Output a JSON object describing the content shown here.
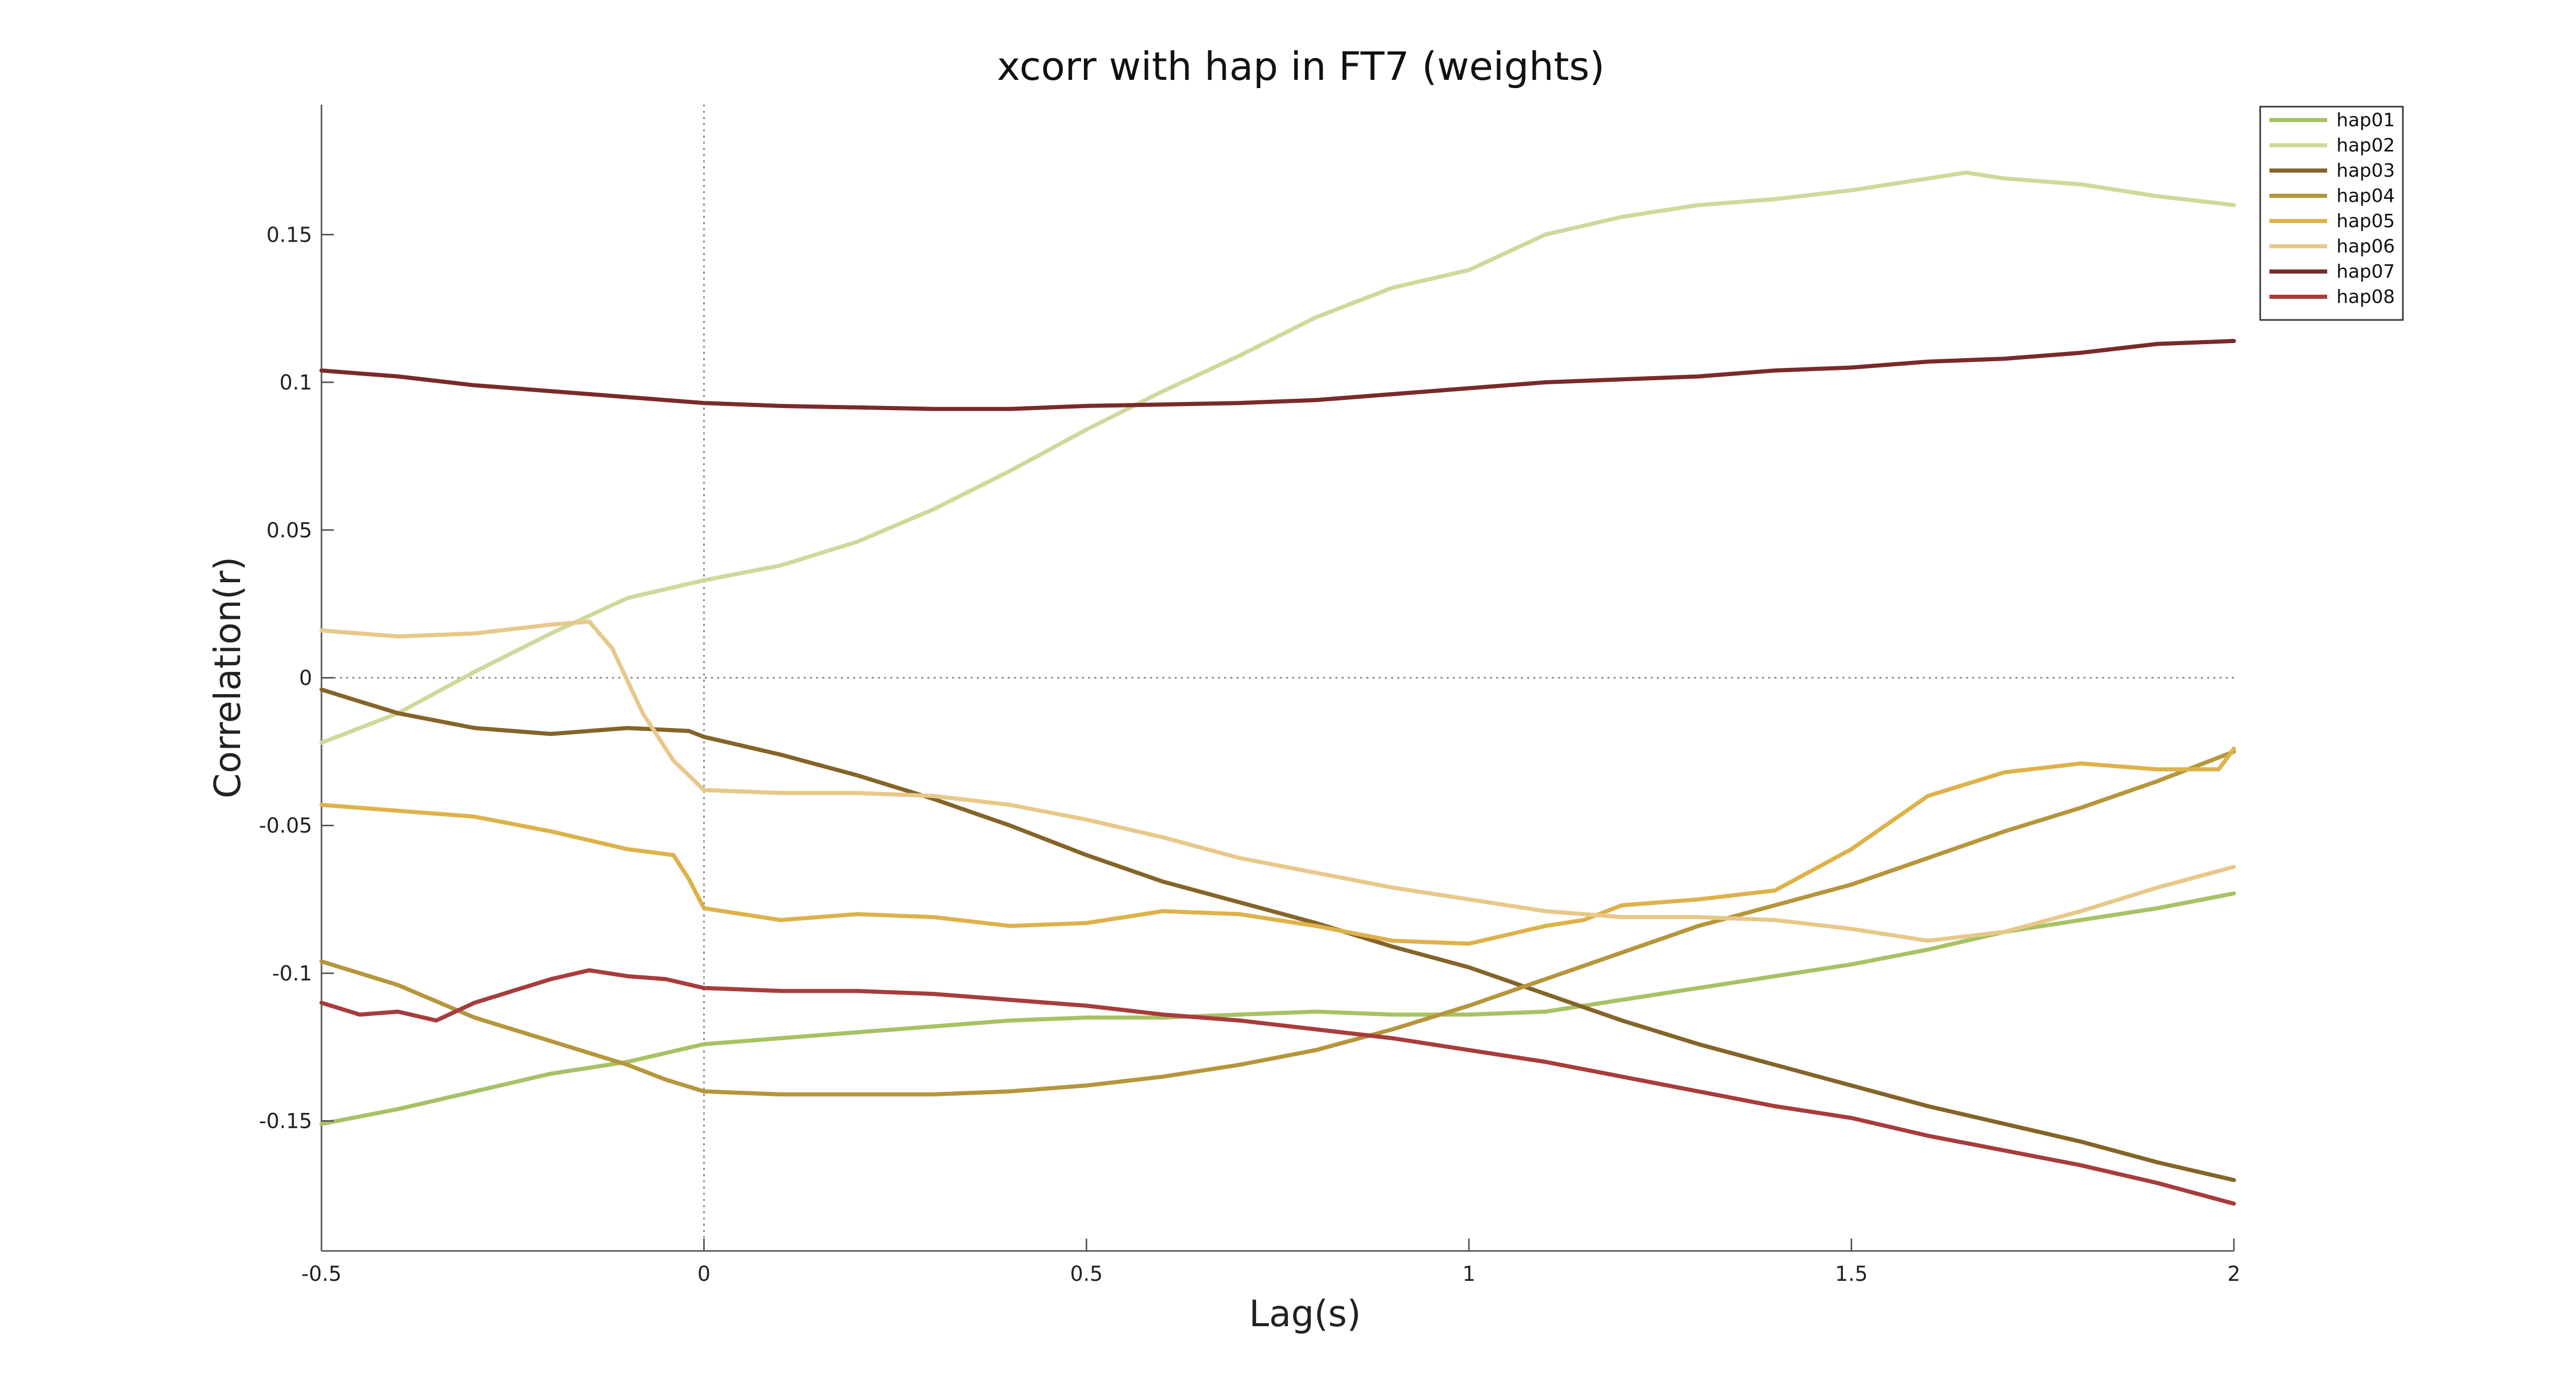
{
  "chart_data": {
    "type": "line",
    "title": "xcorr with hap in FT7 (weights)",
    "xlabel": "Lag(s)",
    "ylabel": "Correlation(r)",
    "xlim": [
      -0.5,
      2.0
    ],
    "ylim": [
      -0.194,
      0.194
    ],
    "x_ticks": [
      -0.5,
      0,
      0.5,
      1,
      1.5,
      2
    ],
    "x_tick_labels": [
      "-0.5",
      "0",
      "0.5",
      "1",
      "1.5",
      "2"
    ],
    "y_ticks": [
      -0.15,
      -0.1,
      -0.05,
      0,
      0.05,
      0.1,
      0.15
    ],
    "y_tick_labels": [
      "-0.15",
      "-0.1",
      "-0.05",
      "0",
      "0.05",
      "0.1",
      "0.15"
    ],
    "grid": false,
    "reference_lines": {
      "x_zero": true,
      "y_zero": true
    },
    "legend_position": "top-right",
    "series": [
      {
        "name": "hap01",
        "color": "#a7c264",
        "x": [
          -0.5,
          -0.4,
          -0.3,
          -0.2,
          -0.1,
          0.0,
          0.1,
          0.2,
          0.3,
          0.4,
          0.5,
          0.6,
          0.7,
          0.8,
          0.9,
          1.0,
          1.1,
          1.2,
          1.3,
          1.4,
          1.5,
          1.6,
          1.7,
          1.8,
          1.9,
          2.0
        ],
        "y": [
          -0.151,
          -0.146,
          -0.14,
          -0.134,
          -0.13,
          -0.124,
          -0.122,
          -0.12,
          -0.118,
          -0.116,
          -0.115,
          -0.115,
          -0.114,
          -0.113,
          -0.114,
          -0.114,
          -0.113,
          -0.109,
          -0.105,
          -0.101,
          -0.097,
          -0.092,
          -0.086,
          -0.082,
          -0.078,
          -0.073
        ]
      },
      {
        "name": "hap02",
        "color": "#cfd99a",
        "x": [
          -0.5,
          -0.4,
          -0.3,
          -0.2,
          -0.1,
          0.0,
          0.1,
          0.2,
          0.3,
          0.4,
          0.5,
          0.6,
          0.7,
          0.8,
          0.9,
          1.0,
          1.1,
          1.2,
          1.3,
          1.4,
          1.5,
          1.6,
          1.65,
          1.7,
          1.8,
          1.9,
          2.0
        ],
        "y": [
          -0.022,
          -0.012,
          0.002,
          0.015,
          0.027,
          0.033,
          0.038,
          0.046,
          0.057,
          0.07,
          0.084,
          0.097,
          0.109,
          0.122,
          0.132,
          0.138,
          0.15,
          0.156,
          0.16,
          0.162,
          0.165,
          0.169,
          0.171,
          0.169,
          0.167,
          0.163,
          0.16
        ]
      },
      {
        "name": "hap03",
        "color": "#846428",
        "x": [
          -0.5,
          -0.45,
          -0.4,
          -0.3,
          -0.2,
          -0.1,
          -0.02,
          0.0,
          0.1,
          0.2,
          0.3,
          0.4,
          0.5,
          0.6,
          0.7,
          0.8,
          0.9,
          1.0,
          1.1,
          1.2,
          1.3,
          1.4,
          1.5,
          1.6,
          1.7,
          1.8,
          1.9,
          2.0
        ],
        "y": [
          -0.004,
          -0.008,
          -0.012,
          -0.017,
          -0.019,
          -0.017,
          -0.018,
          -0.02,
          -0.026,
          -0.033,
          -0.041,
          -0.05,
          -0.06,
          -0.069,
          -0.076,
          -0.083,
          -0.091,
          -0.098,
          -0.107,
          -0.116,
          -0.124,
          -0.131,
          -0.138,
          -0.145,
          -0.151,
          -0.157,
          -0.164,
          -0.17
        ]
      },
      {
        "name": "hap04",
        "color": "#b6963c",
        "x": [
          -0.5,
          -0.4,
          -0.3,
          -0.2,
          -0.1,
          -0.05,
          0.0,
          0.1,
          0.2,
          0.3,
          0.4,
          0.5,
          0.6,
          0.7,
          0.8,
          0.9,
          1.0,
          1.1,
          1.2,
          1.3,
          1.4,
          1.5,
          1.6,
          1.7,
          1.8,
          1.9,
          2.0
        ],
        "y": [
          -0.096,
          -0.104,
          -0.115,
          -0.123,
          -0.131,
          -0.136,
          -0.14,
          -0.141,
          -0.141,
          -0.141,
          -0.14,
          -0.138,
          -0.135,
          -0.131,
          -0.126,
          -0.119,
          -0.111,
          -0.102,
          -0.093,
          -0.084,
          -0.077,
          -0.07,
          -0.061,
          -0.052,
          -0.044,
          -0.035,
          -0.025
        ]
      },
      {
        "name": "hap05",
        "color": "#deb24a",
        "x": [
          -0.5,
          -0.4,
          -0.3,
          -0.2,
          -0.1,
          -0.04,
          -0.02,
          0.0,
          0.1,
          0.2,
          0.3,
          0.4,
          0.5,
          0.6,
          0.7,
          0.8,
          0.9,
          1.0,
          1.1,
          1.15,
          1.2,
          1.3,
          1.4,
          1.5,
          1.6,
          1.7,
          1.8,
          1.9,
          1.98,
          2.0
        ],
        "y": [
          -0.043,
          -0.045,
          -0.047,
          -0.052,
          -0.058,
          -0.06,
          -0.068,
          -0.078,
          -0.082,
          -0.08,
          -0.081,
          -0.084,
          -0.083,
          -0.079,
          -0.08,
          -0.084,
          -0.089,
          -0.09,
          -0.084,
          -0.082,
          -0.077,
          -0.075,
          -0.072,
          -0.058,
          -0.04,
          -0.032,
          -0.029,
          -0.031,
          -0.031,
          -0.024
        ]
      },
      {
        "name": "hap06",
        "color": "#e8c88a",
        "x": [
          -0.5,
          -0.4,
          -0.3,
          -0.2,
          -0.15,
          -0.12,
          -0.08,
          -0.04,
          0.0,
          0.1,
          0.2,
          0.3,
          0.4,
          0.5,
          0.6,
          0.7,
          0.8,
          0.9,
          1.0,
          1.1,
          1.2,
          1.3,
          1.4,
          1.5,
          1.6,
          1.7,
          1.8,
          1.9,
          2.0
        ],
        "y": [
          0.016,
          0.014,
          0.015,
          0.018,
          0.019,
          0.01,
          -0.012,
          -0.028,
          -0.038,
          -0.039,
          -0.039,
          -0.04,
          -0.043,
          -0.048,
          -0.054,
          -0.061,
          -0.066,
          -0.071,
          -0.075,
          -0.079,
          -0.081,
          -0.081,
          -0.082,
          -0.085,
          -0.089,
          -0.086,
          -0.079,
          -0.071,
          -0.064
        ]
      },
      {
        "name": "hap07",
        "color": "#7a2a2a",
        "x": [
          -0.5,
          -0.4,
          -0.3,
          -0.2,
          -0.1,
          0.0,
          0.1,
          0.2,
          0.3,
          0.4,
          0.5,
          0.6,
          0.7,
          0.8,
          0.9,
          1.0,
          1.1,
          1.2,
          1.3,
          1.4,
          1.5,
          1.6,
          1.7,
          1.8,
          1.9,
          2.0
        ],
        "y": [
          0.104,
          0.102,
          0.099,
          0.097,
          0.095,
          0.093,
          0.092,
          0.0915,
          0.091,
          0.091,
          0.092,
          0.0925,
          0.093,
          0.094,
          0.096,
          0.098,
          0.1,
          0.101,
          0.102,
          0.104,
          0.105,
          0.107,
          0.108,
          0.11,
          0.113,
          0.114
        ]
      },
      {
        "name": "hap08",
        "color": "#a83c3c",
        "x": [
          -0.5,
          -0.45,
          -0.4,
          -0.35,
          -0.3,
          -0.2,
          -0.15,
          -0.1,
          -0.05,
          0.0,
          0.1,
          0.2,
          0.3,
          0.4,
          0.5,
          0.6,
          0.7,
          0.8,
          0.9,
          1.0,
          1.1,
          1.2,
          1.3,
          1.4,
          1.5,
          1.6,
          1.7,
          1.8,
          1.9,
          2.0
        ],
        "y": [
          -0.11,
          -0.114,
          -0.113,
          -0.116,
          -0.11,
          -0.102,
          -0.099,
          -0.101,
          -0.102,
          -0.105,
          -0.106,
          -0.106,
          -0.107,
          -0.109,
          -0.111,
          -0.114,
          -0.116,
          -0.119,
          -0.122,
          -0.126,
          -0.13,
          -0.135,
          -0.14,
          -0.145,
          -0.149,
          -0.155,
          -0.16,
          -0.165,
          -0.171,
          -0.178
        ]
      }
    ]
  }
}
